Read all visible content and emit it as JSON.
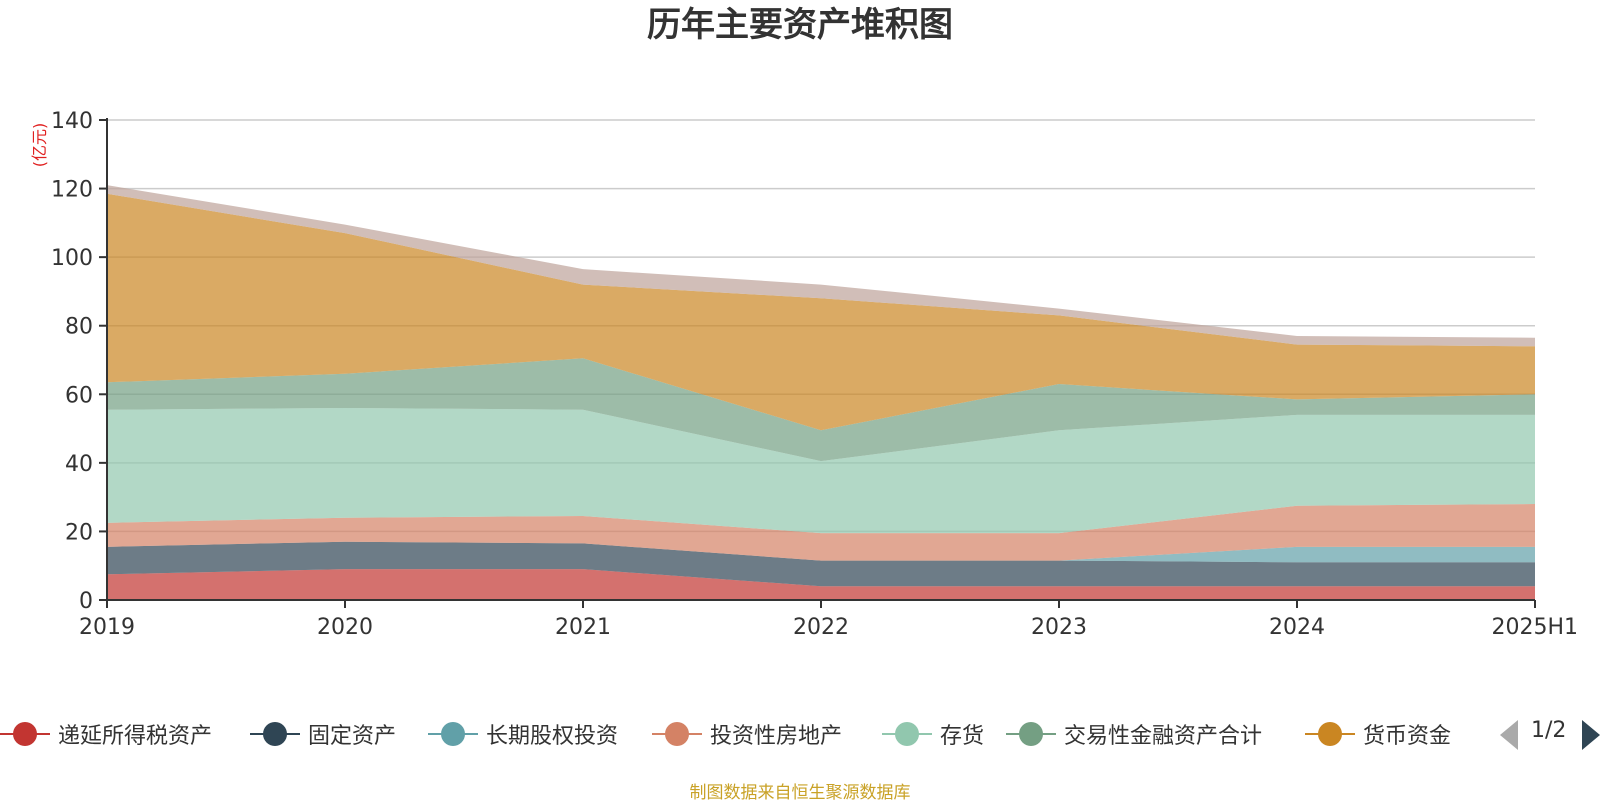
{
  "chart_data": {
    "type": "area",
    "stacked": true,
    "title": "历年主要资产堆积图",
    "unit_label": "(亿元)",
    "x": [
      "2019",
      "2020",
      "2021",
      "2022",
      "2023",
      "2024",
      "2025H1"
    ],
    "ylim": [
      0,
      140
    ],
    "yticks": [
      0,
      20,
      40,
      60,
      80,
      100,
      120,
      140
    ],
    "grid": true,
    "legend_position": "bottom",
    "series": [
      {
        "name": "递延所得税资产",
        "values": [
          7.5,
          9,
          9,
          4,
          4,
          4,
          4
        ],
        "color": "#c23531"
      },
      {
        "name": "固定资产",
        "values": [
          8,
          8,
          7.5,
          7.5,
          7.5,
          7,
          7
        ],
        "color": "#2f4554"
      },
      {
        "name": "长期股权投资",
        "values": [
          0,
          0,
          0,
          0,
          0,
          4.5,
          4.5
        ],
        "color": "#61a0a8"
      },
      {
        "name": "投资性房地产",
        "values": [
          7,
          7,
          8,
          8,
          8,
          12,
          12.5
        ],
        "color": "#d48265"
      },
      {
        "name": "存货",
        "values": [
          33,
          32,
          31,
          21,
          30,
          26.5,
          26
        ],
        "color": "#91c7ae"
      },
      {
        "name": "交易性金融资产合计",
        "values": [
          8,
          10,
          15,
          9,
          13.5,
          4.5,
          6
        ],
        "color": "#749f83"
      },
      {
        "name": "货币资金",
        "values": [
          55,
          41,
          21.5,
          38.5,
          20,
          16,
          14
        ],
        "color": "#ca8622"
      },
      {
        "name": "",
        "values": [
          2.5,
          2.5,
          4.5,
          4,
          2,
          2.5,
          2.5
        ],
        "color": "#bda29a"
      }
    ]
  },
  "legend": {
    "items": [
      {
        "label": "递延所得税资产",
        "color": "#c23531"
      },
      {
        "label": "固定资产",
        "color": "#2f4554"
      },
      {
        "label": "长期股权投资",
        "color": "#61a0a8"
      },
      {
        "label": "投资性房地产",
        "color": "#d48265"
      },
      {
        "label": "存货",
        "color": "#91c7ae"
      },
      {
        "label": "交易性金融资产合计",
        "color": "#749f83"
      },
      {
        "label": "货币资金",
        "color": "#ca8622"
      }
    ],
    "page_text": "1/2"
  },
  "source_note": "制图数据来自恒生聚源数据库"
}
